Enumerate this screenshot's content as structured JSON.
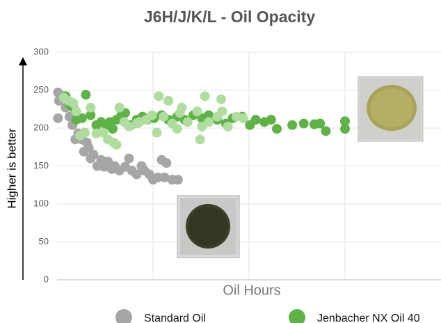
{
  "chart_data": {
    "type": "scatter",
    "title": "J6H/J/K/L - Oil Opacity",
    "ylabel": "Higher is better",
    "xlabel": "Oil Hours",
    "xlim": [
      0,
      4
    ],
    "ylim": [
      0,
      300
    ],
    "yticks": [
      0,
      50,
      100,
      150,
      200,
      250,
      300
    ],
    "grid": true,
    "series": [
      {
        "name": "Standard Oil",
        "color": "#a6a6a6",
        "x": [
          0.01,
          0.02,
          0.01,
          0.06,
          0.09,
          0.13,
          0.16,
          0.19,
          0.22,
          0.26,
          0.28,
          0.31,
          0.33,
          0.35,
          0.38,
          0.42,
          0.46,
          0.49,
          0.53,
          0.57,
          0.6,
          0.65,
          0.71,
          0.75,
          0.78,
          0.83,
          0.88,
          0.91,
          0.96,
          1.0,
          1.05,
          1.09,
          1.12,
          1.14,
          1.2,
          1.26
        ],
        "values": [
          247,
          236,
          213,
          242,
          227,
          215,
          204,
          185,
          193,
          185,
          169,
          181,
          174,
          160,
          165,
          150,
          158,
          149,
          156,
          146,
          150,
          144,
          149,
          160,
          144,
          139,
          150,
          144,
          139,
          132,
          135,
          158,
          135,
          154,
          132,
          132
        ]
      },
      {
        "name": "Jenbacher NX Oil 40",
        "color": "#5fb246",
        "x": [
          0.09,
          0.13,
          0.17,
          0.2,
          0.26,
          0.3,
          0.35,
          0.41,
          0.46,
          0.51,
          0.55,
          0.58,
          0.62,
          0.67,
          0.71,
          0.77,
          0.83,
          0.89,
          0.94,
          1.01,
          1.09,
          1.16,
          1.25,
          1.33,
          1.42,
          1.51,
          1.58,
          1.67,
          1.76,
          1.83,
          1.93,
          2.01,
          2.07,
          2.16,
          2.23,
          2.29,
          2.45,
          2.57,
          2.68,
          2.74,
          2.8,
          3.0,
          3.0
        ],
        "values": [
          242,
          231,
          227,
          211,
          213,
          244,
          217,
          204,
          208,
          204,
          208,
          199,
          211,
          217,
          220,
          204,
          211,
          215,
          211,
          213,
          217,
          211,
          215,
          211,
          217,
          213,
          217,
          211,
          206,
          213,
          215,
          204,
          211,
          208,
          211,
          199,
          204,
          206,
          205,
          206,
          196,
          209,
          199
        ]
      },
      {
        "color": "#aedd9e",
        "x": [
          0.07,
          0.12,
          0.17,
          0.2,
          0.24,
          0.29,
          0.35,
          0.41,
          0.48,
          0.53,
          0.59,
          0.62,
          0.65,
          0.7,
          0.75,
          0.83,
          0.86,
          0.93,
          0.99,
          1.06,
          1.11,
          1.16,
          1.2,
          1.28,
          1.3,
          1.36,
          1.46,
          1.51,
          1.54,
          1.58,
          1.67,
          1.71,
          1.72,
          1.78,
          1.87,
          1.94,
          1.49,
          1.25,
          1.04
        ],
        "values": [
          240,
          236,
          233,
          222,
          190,
          194,
          227,
          193,
          194,
          185,
          181,
          178,
          227,
          208,
          202,
          206,
          208,
          211,
          217,
          242,
          215,
          236,
          206,
          220,
          227,
          208,
          222,
          202,
          242,
          208,
          215,
          238,
          222,
          202,
          215,
          213,
          185,
          199,
          194
        ]
      }
    ]
  }
}
